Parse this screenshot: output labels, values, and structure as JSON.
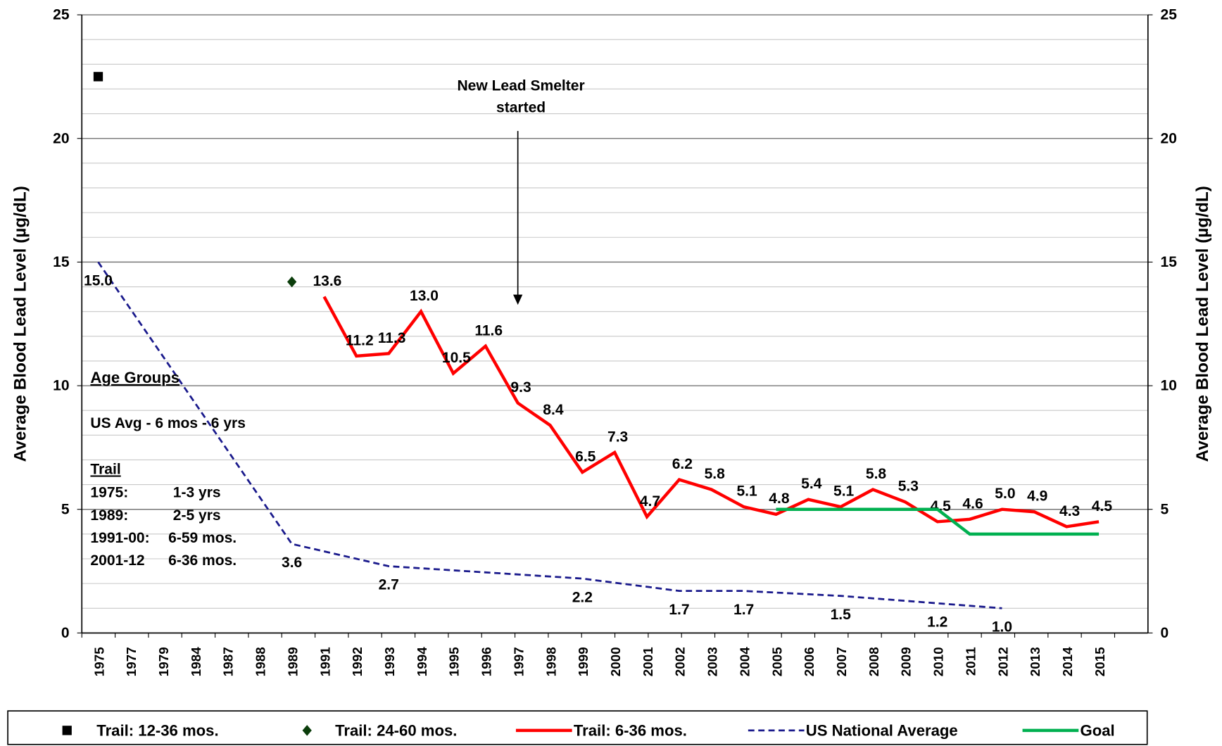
{
  "chart_data": {
    "type": "line",
    "y_axis_label": "Average Blood Lead Level (µg/dL)",
    "y2_axis_label": "Average Blood Lead Level (µg/dL)",
    "categories": [
      "1975",
      "1977",
      "1979",
      "1984",
      "1987",
      "1988",
      "1989",
      "1991",
      "1992",
      "1993",
      "1994",
      "1995",
      "1996",
      "1997",
      "1998",
      "1999",
      "2000",
      "2001",
      "2002",
      "2003",
      "2004",
      "2005",
      "2006",
      "2007",
      "2008",
      "2009",
      "2010",
      "2011",
      "2012",
      "2013",
      "2014",
      "2015"
    ],
    "ylim": [
      0,
      25
    ],
    "yticks": [
      0,
      5,
      10,
      15,
      20,
      25
    ],
    "y2lim": [
      0,
      25
    ],
    "y2ticks": [
      0,
      5,
      10,
      15,
      20,
      25
    ],
    "grid": true,
    "minor_grid_step": 1,
    "series": [
      {
        "name": "Trail: 12-36 mos.",
        "color": "#000000",
        "marker": "square",
        "values": [
          22.5,
          null,
          null,
          null,
          null,
          null,
          null,
          null,
          null,
          null,
          null,
          null,
          null,
          null,
          null,
          null,
          null,
          null,
          null,
          null,
          null,
          null,
          null,
          null,
          null,
          null,
          null,
          null,
          null,
          null,
          null,
          null
        ]
      },
      {
        "name": "Trail: 24-60 mos.",
        "color": "#0b3d0b",
        "marker": "diamond",
        "values": [
          null,
          null,
          null,
          null,
          null,
          null,
          14.2,
          null,
          null,
          null,
          null,
          null,
          null,
          null,
          null,
          null,
          null,
          null,
          null,
          null,
          null,
          null,
          null,
          null,
          null,
          null,
          null,
          null,
          null,
          null,
          null,
          null
        ]
      },
      {
        "name": "Trail: 6-36 mos.",
        "color": "#ff0000",
        "style": "solid",
        "values": [
          null,
          null,
          null,
          null,
          null,
          null,
          null,
          13.6,
          11.2,
          11.3,
          13.0,
          10.5,
          11.6,
          9.3,
          8.4,
          6.5,
          7.3,
          4.7,
          6.2,
          5.8,
          5.1,
          4.8,
          5.4,
          5.1,
          5.8,
          5.3,
          4.5,
          4.6,
          5.0,
          4.9,
          4.3,
          4.5
        ],
        "value_labels": [
          null,
          null,
          null,
          null,
          null,
          null,
          null,
          "13.6",
          "11.2",
          "11.3",
          "13.0",
          "10.5",
          "11.6",
          "9.3",
          "8.4",
          "6.5",
          "7.3",
          "4.7",
          "6.2",
          "5.8",
          "5.1",
          "4.8",
          "5.4",
          "5.1",
          "5.8",
          "5.3",
          "4.5",
          "4.6",
          "5.0",
          "4.9",
          "4.3",
          "4.5"
        ]
      },
      {
        "name": "US National Average",
        "color": "#1a1a8c",
        "style": "dashed",
        "x": [
          "1975",
          "1989",
          "1993",
          "1999",
          "2002",
          "2004",
          "2007",
          "2010",
          "2012"
        ],
        "values": [
          15.0,
          3.6,
          2.7,
          2.2,
          1.7,
          1.7,
          1.5,
          1.2,
          1.0
        ],
        "value_labels": [
          "15.0",
          "3.6",
          "2.7",
          "2.2",
          "1.7",
          "1.7",
          "1.5",
          "1.2",
          "1.0"
        ]
      },
      {
        "name": "Goal",
        "color": "#00b050",
        "style": "solid",
        "x": [
          "2005",
          "2006",
          "2007",
          "2008",
          "2009",
          "2010",
          "2011",
          "2012",
          "2013",
          "2014",
          "2015"
        ],
        "values": [
          5,
          5,
          5,
          5,
          5,
          5,
          4,
          4,
          4,
          4,
          4
        ]
      }
    ],
    "annotation": {
      "text": [
        "New Lead Smelter",
        "started"
      ],
      "category": "1997"
    },
    "notes": {
      "title": "Age Groups",
      "us": "US Avg - 6 mos - 6 yrs",
      "trail": "Trail",
      "rows": [
        [
          "1975:",
          "1-3 yrs"
        ],
        [
          "1989:",
          "2-5 yrs"
        ],
        [
          "1991-00:",
          "6-59 mos."
        ],
        [
          "2001-12",
          "6-36 mos."
        ]
      ]
    }
  }
}
